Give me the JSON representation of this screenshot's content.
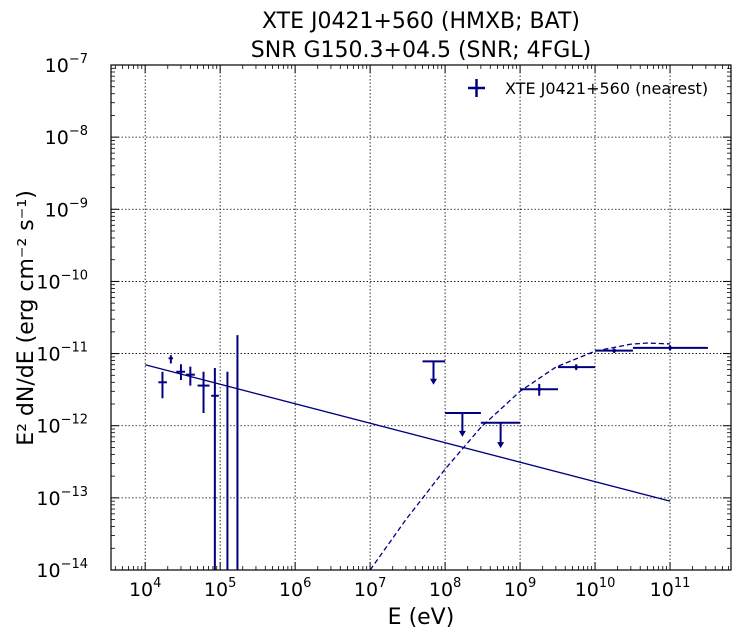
{
  "chart_data": {
    "type": "scatter",
    "title": [
      "XTE J0421+560 (HMXB; BAT)",
      "SNR G150.3+04.5 (SNR; 4FGL)"
    ],
    "xlabel": "E (eV)",
    "ylabel": "E² dN/dE (erg cm⁻² s⁻¹)",
    "xscale": "log",
    "yscale": "log",
    "xlim": [
      3500.0,
      650000000000.0
    ],
    "ylim": [
      1e-14,
      1e-07
    ],
    "grid": true,
    "legend_position": "top-right",
    "color": "#00007f",
    "x_ticks": [
      {
        "value": 10000.0,
        "base": "10",
        "exp": "4"
      },
      {
        "value": 100000.0,
        "base": "10",
        "exp": "5"
      },
      {
        "value": 1000000.0,
        "base": "10",
        "exp": "6"
      },
      {
        "value": 10000000.0,
        "base": "10",
        "exp": "7"
      },
      {
        "value": 100000000.0,
        "base": "10",
        "exp": "8"
      },
      {
        "value": 1000000000.0,
        "base": "10",
        "exp": "9"
      },
      {
        "value": 10000000000.0,
        "base": "10",
        "exp": "10"
      },
      {
        "value": 100000000000.0,
        "base": "10",
        "exp": "11"
      }
    ],
    "y_ticks": [
      {
        "value": 1e-14,
        "base": "10",
        "exp": "−14"
      },
      {
        "value": 1e-13,
        "base": "10",
        "exp": "−13"
      },
      {
        "value": 1e-12,
        "base": "10",
        "exp": "−12"
      },
      {
        "value": 1e-11,
        "base": "10",
        "exp": "−11"
      },
      {
        "value": 1e-10,
        "base": "10",
        "exp": "−10"
      },
      {
        "value": 1e-09,
        "base": "10",
        "exp": "−9"
      },
      {
        "value": 1e-08,
        "base": "10",
        "exp": "−8"
      },
      {
        "value": 1e-07,
        "base": "10",
        "exp": "−7"
      }
    ],
    "series": [
      {
        "name": "XTE J0421+560 (nearest)",
        "kind": "bat_points",
        "points": [
          {
            "x": 17000.0,
            "xlo": 15000.0,
            "xhi": 19500.0,
            "y": 4e-12,
            "ylo": 2.4e-12,
            "yhi": 5.6e-12,
            "ul": false
          },
          {
            "x": 22000.0,
            "xlo": 20500.0,
            "xhi": 23500.0,
            "y": 8.6e-12,
            "ylo": 7.3e-12,
            "yhi": 9.5e-12,
            "ul": false
          },
          {
            "x": 30000.0,
            "xlo": 26000.0,
            "xhi": 34000.0,
            "y": 5.6e-12,
            "ylo": 4.3e-12,
            "yhi": 7.1e-12,
            "ul": false
          },
          {
            "x": 40000.0,
            "xlo": 35000.0,
            "xhi": 46000.0,
            "y": 5.1e-12,
            "ylo": 3.6e-12,
            "yhi": 6.6e-12,
            "ul": false
          },
          {
            "x": 60000.0,
            "xlo": 50000.0,
            "xhi": 72000.0,
            "y": 3.6e-12,
            "ylo": 1.5e-12,
            "yhi": 5.6e-12,
            "ul": false
          },
          {
            "x": 85000.0,
            "xlo": 76000.0,
            "xhi": 96000.0,
            "y": 2.6e-12,
            "ylo": 1e-14,
            "yhi": 6.3e-12,
            "ul": false
          },
          {
            "x": 125000.0,
            "xlo": 125000.0,
            "xhi": 125000.0,
            "y": 5e-14,
            "ylo": 1e-14,
            "yhi": 5.6e-12,
            "ul": false
          },
          {
            "x": 170000.0,
            "xlo": 170000.0,
            "xhi": 170000.0,
            "y": 5e-14,
            "ylo": 1e-14,
            "yhi": 1.8e-11,
            "ul": false
          }
        ]
      },
      {
        "name": "",
        "kind": "fermi_points",
        "points": [
          {
            "x": 70000000.0,
            "xlo": 50000000.0,
            "xhi": 100000000.0,
            "y": 7.8e-12,
            "ul": true,
            "arrow_to": 3.7e-12
          },
          {
            "x": 170000000.0,
            "xlo": 100000000.0,
            "xhi": 300000000.0,
            "y": 1.5e-12,
            "ul": true,
            "arrow_to": 7e-13
          },
          {
            "x": 550000000.0,
            "xlo": 300000000.0,
            "xhi": 1000000000.0,
            "y": 1.1e-12,
            "ul": true,
            "arrow_to": 4.9e-13
          },
          {
            "x": 1800000000.0,
            "xlo": 1000000000.0,
            "xhi": 3200000000.0,
            "y": 3.2e-12,
            "ylo": 2.6e-12,
            "yhi": 3.8e-12,
            "ul": false
          },
          {
            "x": 5600000000.0,
            "xlo": 3200000000.0,
            "xhi": 10000000000.0,
            "y": 6.5e-12,
            "ylo": 5.9e-12,
            "yhi": 7.1e-12,
            "ul": false
          },
          {
            "x": 18000000000.0,
            "xlo": 10000000000.0,
            "xhi": 32000000000.0,
            "y": 1.1e-11,
            "ylo": 1.02e-11,
            "yhi": 1.18e-11,
            "ul": false
          },
          {
            "x": 100000000000.0,
            "xlo": 32000000000.0,
            "xhi": 320000000000.0,
            "y": 1.2e-11,
            "ylo": 1.1e-11,
            "yhi": 1.3e-11,
            "ul": false
          }
        ]
      },
      {
        "name": "",
        "kind": "powerlaw_line",
        "points": [
          {
            "x": 10000.0,
            "y": 7e-12
          },
          {
            "x": 100000000000.0,
            "y": 9e-14
          }
        ]
      },
      {
        "name": "",
        "kind": "logparabola_dashed",
        "points": [
          {
            "x": 10000000.0,
            "y": 1e-14
          },
          {
            "x": 30000000.0,
            "y": 5e-14
          },
          {
            "x": 100000000.0,
            "y": 2.5e-13
          },
          {
            "x": 300000000.0,
            "y": 9.5e-13
          },
          {
            "x": 1000000000.0,
            "y": 3e-12
          },
          {
            "x": 3000000000.0,
            "y": 6.5e-12
          },
          {
            "x": 10000000000.0,
            "y": 1.08e-11
          },
          {
            "x": 30000000000.0,
            "y": 1.35e-11
          },
          {
            "x": 50000000000.0,
            "y": 1.4e-11
          },
          {
            "x": 100000000000.0,
            "y": 1.36e-11
          }
        ]
      }
    ]
  }
}
